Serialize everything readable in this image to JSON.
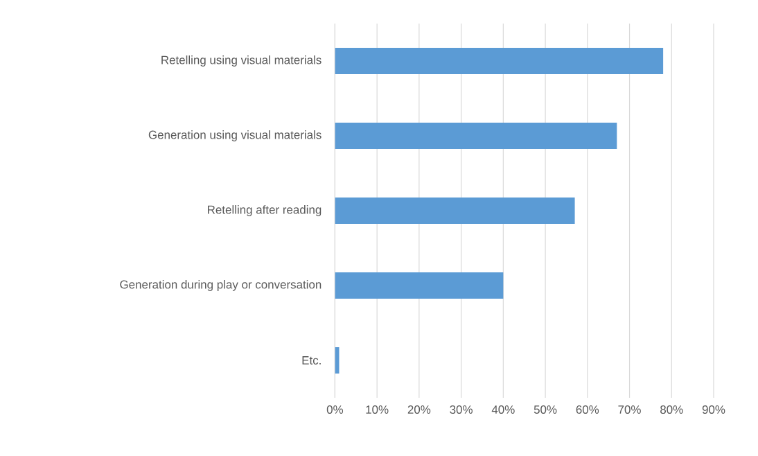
{
  "chart_data": {
    "type": "bar",
    "orientation": "horizontal",
    "categories": [
      "Retelling using visual materials",
      "Generation using visual materials",
      "Retelling after reading",
      "Generation during play or conversation",
      "Etc."
    ],
    "values": [
      78,
      67,
      57,
      40,
      1
    ],
    "color": "#5b9bd5",
    "xlim": [
      0,
      90
    ],
    "xticks": [
      {
        "value": 0,
        "label": "0%"
      },
      {
        "value": 10,
        "label": "10%"
      },
      {
        "value": 20,
        "label": "20%"
      },
      {
        "value": 30,
        "label": "30%"
      },
      {
        "value": 40,
        "label": "40%"
      },
      {
        "value": 50,
        "label": "50%"
      },
      {
        "value": 60,
        "label": "60%"
      },
      {
        "value": 70,
        "label": "70%"
      },
      {
        "value": 80,
        "label": "80%"
      },
      {
        "value": 90,
        "label": "90%"
      }
    ],
    "grid": "x"
  }
}
